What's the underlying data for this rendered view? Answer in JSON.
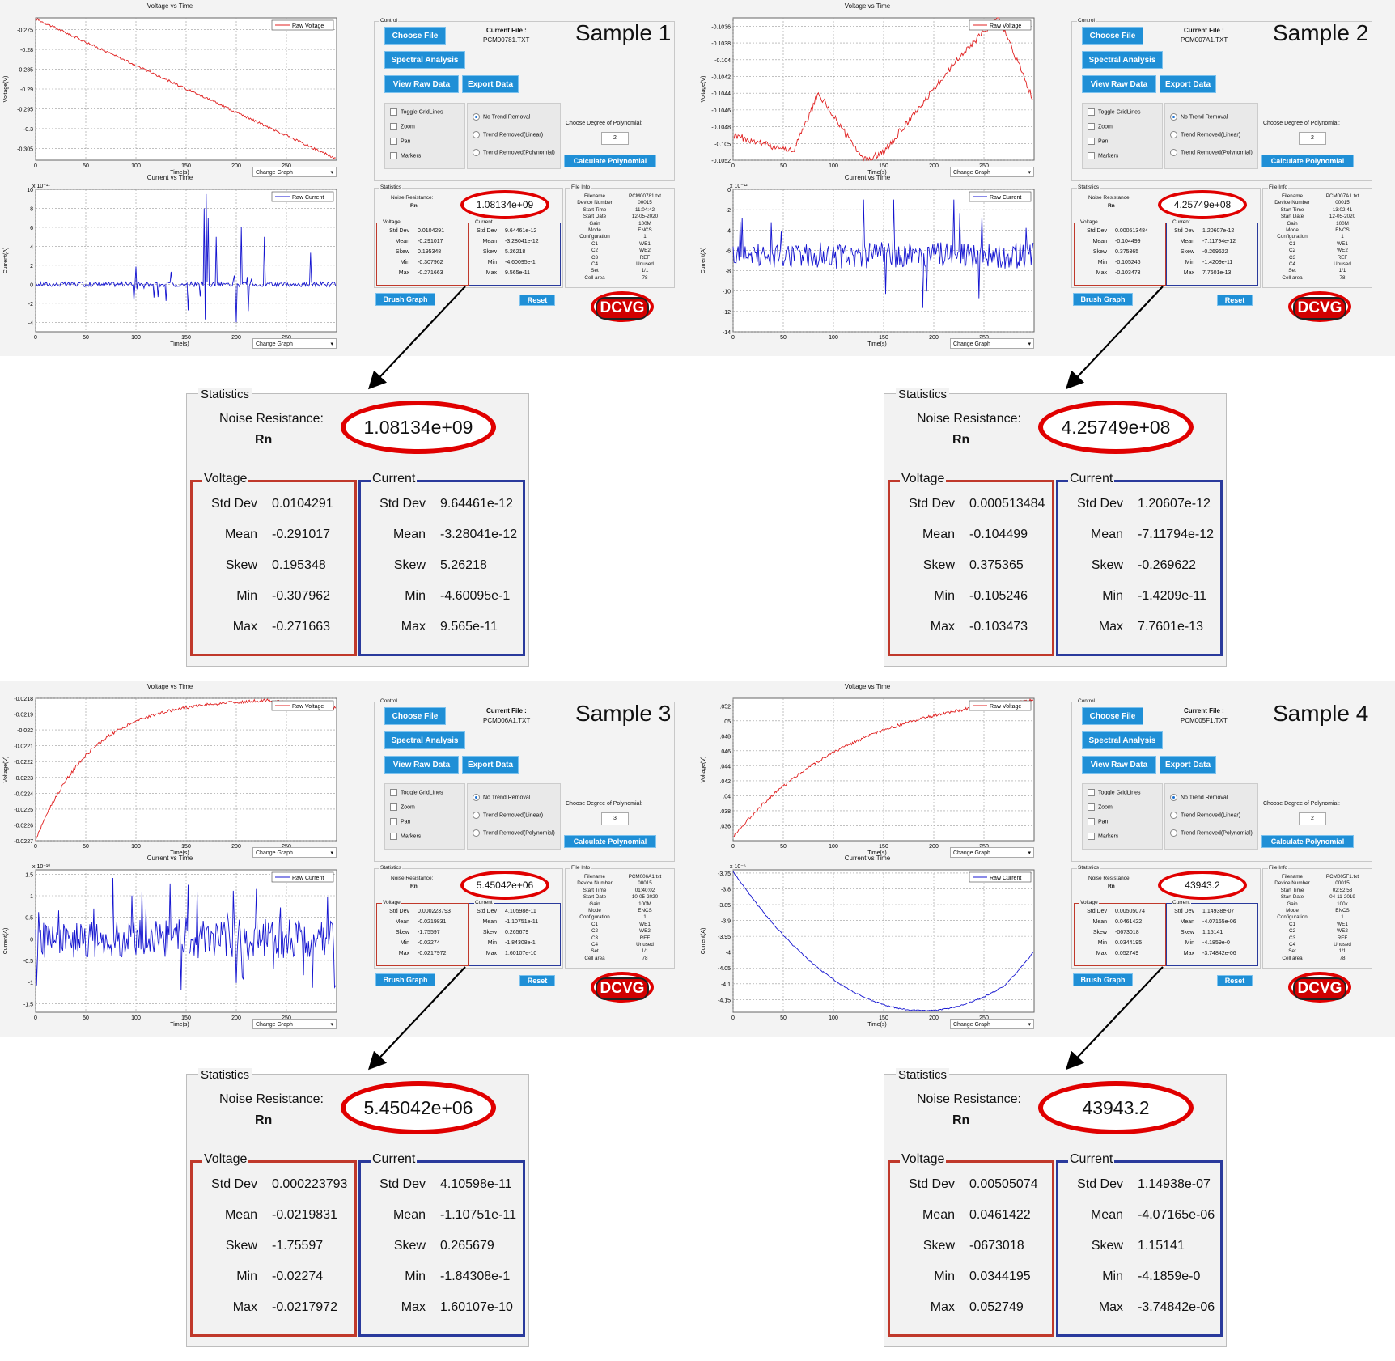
{
  "common": {
    "voltage_chart_title": "Voltage vs Time",
    "current_chart_title": "Current vs Time",
    "voltage_legend": "Raw Voltage",
    "current_legend": "Raw Current",
    "x_label": "Time(s)",
    "voltage_ylabel": "Voltage(V)",
    "current_ylabel": "Current(A)",
    "change_graph": "Change Graph",
    "control_label": "Control",
    "choose_file": "Choose File",
    "spectral_analysis": "Spectral Analysis",
    "view_raw_data": "View Raw Data",
    "export_data": "Export Data",
    "current_file_label": "Current File :",
    "toggle_gridlines": "Toggle GridLines",
    "zoom": "Zoom",
    "pan": "Pan",
    "markers": "Markers",
    "no_trend": "No Trend Removal",
    "trend_linear": "Trend Removed(Linear)",
    "trend_poly": "Trend Removed(Polynomial)",
    "choose_degree": "Choose Degree of Polynomial:",
    "calc_poly": "Calculate Polynomial",
    "statistics": "Statistics",
    "noise_resistance": "Noise Resistance:",
    "rn": "Rn",
    "voltage": "Voltage",
    "current": "Current",
    "file_info": "File Info",
    "std_dev": "Std Dev",
    "mean": "Mean",
    "skew": "Skew",
    "min": "Min",
    "max": "Max",
    "brush_graph": "Brush Graph",
    "reset": "Reset",
    "logo": "DCVG",
    "fi_labels": [
      "Filename",
      "Device Number",
      "Start Time",
      "Start Date",
      "Gain",
      "Mode",
      "Configuration",
      "C1",
      "C2",
      "C3",
      "C4",
      "Set",
      "Cell area"
    ],
    "colors": {
      "accent_button": "#1f8fd6",
      "highlight_oval": "#e00000",
      "voltage_box": "#c0392b",
      "current_box": "#2a3a9c",
      "voltage_trace": "#e02020",
      "current_trace": "#1515d0"
    }
  },
  "samples": [
    {
      "label": "Sample 1",
      "current_file": "PCM00781.TXT",
      "degree": "2",
      "noise_resistance": "1.08134e+09",
      "voltage": {
        "std_dev": "0.0104291",
        "mean": "-0.291017",
        "skew": "0.195348",
        "min": "-0.307962",
        "max": "-0.271663"
      },
      "current": {
        "std_dev": "9.64461e-12",
        "mean": "-3.28041e-12",
        "skew": "5.26218",
        "min": "-4.60095e-1",
        "max": "9.565e-11"
      },
      "fi_values": [
        "PCM00781.txt",
        "00015",
        "11:04:42",
        "12-05-2020",
        "100M",
        "ENCS",
        "1",
        "WE1",
        "WE2",
        "REF",
        "Unused",
        "1/1",
        "78"
      ],
      "vchart": {
        "xlim": [
          0,
          300
        ],
        "ylim": [
          -0.308,
          -0.272
        ],
        "yticks": [
          "-0.275",
          "-0.28",
          "-0.285",
          "-0.29",
          "-0.295",
          "-0.3",
          "-0.305"
        ],
        "ytick_vals": [
          -0.275,
          -0.28,
          -0.285,
          -0.29,
          -0.295,
          -0.3,
          -0.305
        ],
        "xticks": [
          "0",
          "50",
          "100",
          "150",
          "200",
          "250"
        ]
      },
      "cchart": {
        "exp": "x 10⁻¹¹",
        "ylim": [
          -5,
          10
        ],
        "yticks": [
          "10",
          "8",
          "6",
          "4",
          "2",
          "0",
          "-2",
          "-4"
        ],
        "ytick_vals": [
          10,
          8,
          6,
          4,
          2,
          0,
          -2,
          -4
        ],
        "xticks": [
          "0",
          "50",
          "100",
          "150",
          "200",
          "250"
        ]
      }
    },
    {
      "label": "Sample 2",
      "current_file": "PCM007A1.TXT",
      "degree": "2",
      "noise_resistance": "4.25749e+08",
      "voltage": {
        "std_dev": "0.000513484",
        "mean": "-0.104499",
        "skew": "0.375365",
        "min": "-0.105246",
        "max": "-0.103473"
      },
      "current": {
        "std_dev": "1.20607e-12",
        "mean": "-7.11794e-12",
        "skew": "-0.269622",
        "min": "-1.4209e-11",
        "max": "7.7601e-13"
      },
      "fi_values": [
        "PCM007A1.txt",
        "00015",
        "13:02:41",
        "12-05-2020",
        "100M",
        "ENCS",
        "1",
        "WE1",
        "WE2",
        "REF",
        "Unused",
        "1/1",
        "78"
      ],
      "vchart": {
        "xlim": [
          0,
          300
        ],
        "ylim": [
          -0.1052,
          -0.1035
        ],
        "yticks": [
          "-0.1036",
          "-0.1038",
          "-0.104",
          "-0.1042",
          "-0.1044",
          "-0.1046",
          "-0.1048",
          "-0.105",
          "-0.1052"
        ],
        "ytick_vals": [
          -0.1036,
          -0.1038,
          -0.104,
          -0.1042,
          -0.1044,
          -0.1046,
          -0.1048,
          -0.105,
          -0.1052
        ],
        "xticks": [
          "0",
          "50",
          "100",
          "150",
          "200",
          "250"
        ]
      },
      "cchart": {
        "exp": "x 10⁻¹²",
        "ylim": [
          -14,
          0
        ],
        "yticks": [
          "0",
          "-2",
          "-4",
          "-6",
          "-8",
          "-10",
          "-12",
          "-14"
        ],
        "ytick_vals": [
          0,
          -2,
          -4,
          -6,
          -8,
          -10,
          -12,
          -14
        ],
        "xticks": [
          "0",
          "50",
          "100",
          "150",
          "200",
          "250"
        ]
      }
    },
    {
      "label": "Sample 3",
      "current_file": "PCM006A1.TXT",
      "degree": "3",
      "noise_resistance": "5.45042e+06",
      "voltage": {
        "std_dev": "0.000223793",
        "mean": "-0.0219831",
        "skew": "-1.75597",
        "min": "-0.02274",
        "max": "-0.0217972"
      },
      "current": {
        "std_dev": "4.10598e-11",
        "mean": "-1.10751e-11",
        "skew": "0.265679",
        "min": "-1.84308e-1",
        "max": "1.60107e-10"
      },
      "fi_values": [
        "PCM006A1.txt",
        "00015",
        "01:40:02",
        "10-05-2020",
        "100M",
        "ENCS",
        "1",
        "WE1",
        "WE2",
        "REF",
        "Unused",
        "1/1",
        "78"
      ],
      "vchart": {
        "xlim": [
          0,
          300
        ],
        "ylim": [
          -0.0227,
          -0.0218
        ],
        "yticks": [
          "-0.0218",
          "-0.0219",
          "-0.022",
          "-0.0221",
          "-0.0222",
          "-0.0223",
          "-0.0224",
          "-0.0225",
          "-0.0226",
          "-0.0227"
        ],
        "ytick_vals": [
          -0.0218,
          -0.0219,
          -0.022,
          -0.0221,
          -0.0222,
          -0.0223,
          -0.0224,
          -0.0225,
          -0.0226,
          -0.0227
        ],
        "xticks": [
          "0",
          "50",
          "100",
          "150",
          "200",
          "250"
        ]
      },
      "cchart": {
        "exp": "x 10⁻¹⁰",
        "ylim": [
          -1.7,
          1.6
        ],
        "yticks": [
          "1.5",
          "1",
          "0.5",
          "0",
          "-0.5",
          "-1",
          "-1.5"
        ],
        "ytick_vals": [
          1.5,
          1,
          0.5,
          0,
          -0.5,
          -1,
          -1.5
        ],
        "xticks": [
          "0",
          "50",
          "100",
          "150",
          "200",
          "250"
        ]
      }
    },
    {
      "label": "Sample 4",
      "current_file": "PCM005F1.TXT",
      "degree": "2",
      "noise_resistance": "43943.2",
      "voltage": {
        "std_dev": "0.00505074",
        "mean": "0.0461422",
        "skew": "-0673018",
        "min": "0.0344195",
        "max": "0.052749"
      },
      "current": {
        "std_dev": "1.14938e-07",
        "mean": "-4.07165e-06",
        "skew": "1.15141",
        "min": "-4.1859e-0",
        "max": "-3.74842e-06"
      },
      "fi_values": [
        "PCM005F1.txt",
        "00015",
        "02:52:53",
        "04-11-2019",
        "100k",
        "ENCS",
        "1",
        "WE1",
        "WE2",
        "REF",
        "Unused",
        "1/1",
        "78"
      ],
      "vchart": {
        "xlim": [
          0,
          300
        ],
        "ylim": [
          0.034,
          0.053
        ],
        "yticks": [
          ".052",
          ".05",
          ".048",
          ".046",
          ".044",
          ".042",
          ".04",
          ".038",
          ".036"
        ],
        "ytick_vals": [
          0.052,
          0.05,
          0.048,
          0.046,
          0.044,
          0.042,
          0.04,
          0.038,
          0.036
        ],
        "xticks": [
          "0",
          "50",
          "100",
          "150",
          "200",
          "250"
        ]
      },
      "cchart": {
        "exp": "x 10⁻⁶",
        "ylim": [
          -4.19,
          -3.74
        ],
        "yticks": [
          "-3.75",
          "-3.8",
          "-3.85",
          "-3.9",
          "-3.95",
          "-4",
          "-4.05",
          "-4.1",
          "-4.15"
        ],
        "ytick_vals": [
          -3.75,
          -3.8,
          -3.85,
          -3.9,
          -3.95,
          -4,
          -4.05,
          -4.1,
          -4.15
        ],
        "xticks": [
          "0",
          "50",
          "100",
          "150",
          "200",
          "250"
        ]
      }
    }
  ]
}
